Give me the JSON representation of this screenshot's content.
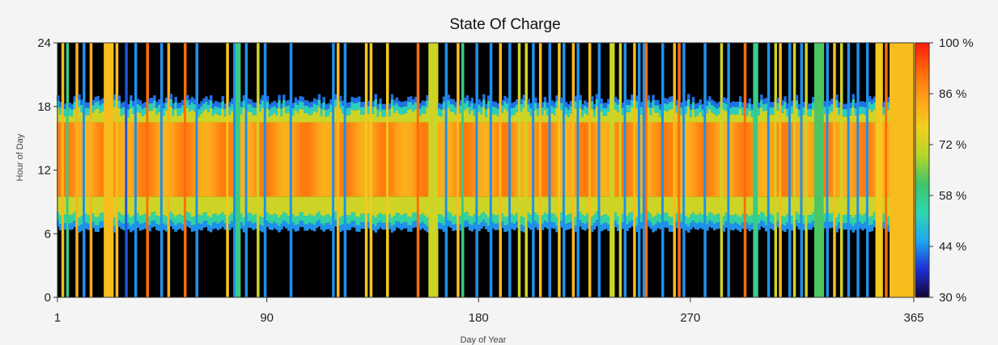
{
  "chart_data": {
    "type": "heatmap",
    "title": "State Of Charge",
    "xlabel": "Day of Year",
    "ylabel": "Hour of Day",
    "x_range": [
      1,
      365
    ],
    "y_range": [
      0,
      24
    ],
    "x_ticks": [
      "1",
      "90",
      "180",
      "270",
      "365"
    ],
    "x_tick_values": [
      1,
      90,
      180,
      270,
      365
    ],
    "y_ticks": [
      "0",
      "6",
      "12",
      "18",
      "24"
    ],
    "y_tick_values": [
      0,
      6,
      12,
      18,
      24
    ],
    "colorbar": {
      "min": 30,
      "max": 100,
      "unit": "%",
      "tick_labels": [
        "100 %",
        "86 %",
        "72 %",
        "58 %",
        "44 %",
        "30 %"
      ],
      "tick_values": [
        100,
        86,
        72,
        58,
        44,
        30
      ],
      "colors": [
        "#120436",
        "#1f2fd6",
        "#1fa8f0",
        "#2fd6b0",
        "#3ec46a",
        "#b4d62a",
        "#f2d020",
        "#ffa21a",
        "#ff6a0a",
        "#ff1a0a"
      ]
    },
    "background_value_night": 0,
    "daytime_band_hours": [
      7,
      17
    ],
    "peak_band_hours": [
      9.5,
      16.5
    ],
    "full_day_events": [
      {
        "day": 3,
        "soc": 80
      },
      {
        "day": 5,
        "soc": 58
      },
      {
        "day": 9,
        "soc": 82
      },
      {
        "day": 12,
        "soc": 44
      },
      {
        "day": 15,
        "soc": 82
      },
      {
        "day": 21,
        "soc": 80
      },
      {
        "day": 22,
        "soc": 80
      },
      {
        "day": 23,
        "soc": 80
      },
      {
        "day": 24,
        "soc": 80
      },
      {
        "day": 26,
        "soc": 80
      },
      {
        "day": 30,
        "soc": 40
      },
      {
        "day": 34,
        "soc": 44
      },
      {
        "day": 39,
        "soc": 92
      },
      {
        "day": 45,
        "soc": 44
      },
      {
        "day": 48,
        "soc": 82
      },
      {
        "day": 55,
        "soc": 92
      },
      {
        "day": 60,
        "soc": 44
      },
      {
        "day": 73,
        "soc": 78
      },
      {
        "day": 76,
        "soc": 44
      },
      {
        "day": 77,
        "soc": 58
      },
      {
        "day": 78,
        "soc": 58
      },
      {
        "day": 81,
        "soc": 44
      },
      {
        "day": 86,
        "soc": 72
      },
      {
        "day": 89,
        "soc": 44
      },
      {
        "day": 100,
        "soc": 44
      },
      {
        "day": 118,
        "soc": 44
      },
      {
        "day": 120,
        "soc": 80
      },
      {
        "day": 123,
        "soc": 44
      },
      {
        "day": 132,
        "soc": 78
      },
      {
        "day": 134,
        "soc": 78
      },
      {
        "day": 141,
        "soc": 78
      },
      {
        "day": 154,
        "soc": 92
      },
      {
        "day": 159,
        "soc": 72
      },
      {
        "day": 160,
        "soc": 72
      },
      {
        "day": 161,
        "soc": 72
      },
      {
        "day": 162,
        "soc": 72
      },
      {
        "day": 166,
        "soc": 44
      },
      {
        "day": 171,
        "soc": 80
      },
      {
        "day": 173,
        "soc": 58
      },
      {
        "day": 179,
        "soc": 44
      },
      {
        "day": 185,
        "soc": 44
      },
      {
        "day": 189,
        "soc": 80
      },
      {
        "day": 193,
        "soc": 44
      },
      {
        "day": 197,
        "soc": 72
      },
      {
        "day": 200,
        "soc": 72
      },
      {
        "day": 203,
        "soc": 44
      },
      {
        "day": 206,
        "soc": 80
      },
      {
        "day": 210,
        "soc": 44
      },
      {
        "day": 214,
        "soc": 78
      },
      {
        "day": 216,
        "soc": 44
      },
      {
        "day": 220,
        "soc": 80
      },
      {
        "day": 222,
        "soc": 44
      },
      {
        "day": 227,
        "soc": 80
      },
      {
        "day": 231,
        "soc": 44
      },
      {
        "day": 236,
        "soc": 72
      },
      {
        "day": 237,
        "soc": 72
      },
      {
        "day": 240,
        "soc": 72
      },
      {
        "day": 242,
        "soc": 44
      },
      {
        "day": 246,
        "soc": 80
      },
      {
        "day": 248,
        "soc": 44
      },
      {
        "day": 250,
        "soc": 44
      },
      {
        "day": 251,
        "soc": 92
      },
      {
        "day": 258,
        "soc": 44
      },
      {
        "day": 263,
        "soc": 80
      },
      {
        "day": 265,
        "soc": 92
      },
      {
        "day": 267,
        "soc": 44
      },
      {
        "day": 276,
        "soc": 44
      },
      {
        "day": 283,
        "soc": 72
      },
      {
        "day": 286,
        "soc": 44
      },
      {
        "day": 293,
        "soc": 92
      },
      {
        "day": 297,
        "soc": 58
      },
      {
        "day": 298,
        "soc": 58
      },
      {
        "day": 303,
        "soc": 44
      },
      {
        "day": 306,
        "soc": 72
      },
      {
        "day": 308,
        "soc": 80
      },
      {
        "day": 312,
        "soc": 44
      },
      {
        "day": 314,
        "soc": 72
      },
      {
        "day": 317,
        "soc": 44
      },
      {
        "day": 319,
        "soc": 72
      },
      {
        "day": 323,
        "soc": 62
      },
      {
        "day": 324,
        "soc": 62
      },
      {
        "day": 325,
        "soc": 62
      },
      {
        "day": 326,
        "soc": 62
      },
      {
        "day": 328,
        "soc": 44
      },
      {
        "day": 331,
        "soc": 80
      },
      {
        "day": 334,
        "soc": 72
      },
      {
        "day": 337,
        "soc": 44
      },
      {
        "day": 341,
        "soc": 44
      },
      {
        "day": 345,
        "soc": 44
      },
      {
        "day": 349,
        "soc": 78
      },
      {
        "day": 350,
        "soc": 78
      },
      {
        "day": 351,
        "soc": 78
      },
      {
        "day": 353,
        "soc": 92
      },
      {
        "day": 355,
        "soc": 80
      },
      {
        "day": 356,
        "soc": 80
      },
      {
        "day": 357,
        "soc": 80
      },
      {
        "day": 358,
        "soc": 80
      },
      {
        "day": 359,
        "soc": 80
      },
      {
        "day": 360,
        "soc": 80
      },
      {
        "day": 361,
        "soc": 80
      },
      {
        "day": 362,
        "soc": 80
      },
      {
        "day": 363,
        "soc": 80
      },
      {
        "day": 364,
        "soc": 80
      },
      {
        "day": 365,
        "soc": 80
      }
    ]
  }
}
